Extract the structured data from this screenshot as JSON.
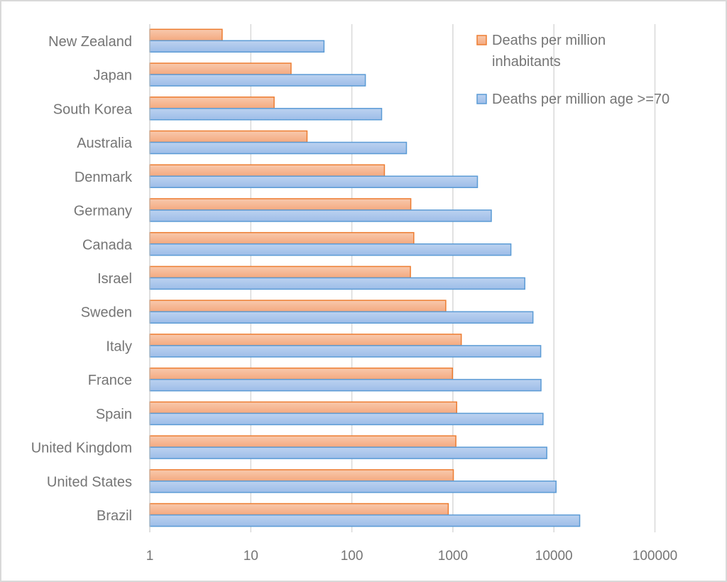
{
  "chart_data": {
    "type": "bar",
    "orientation": "horizontal",
    "title": "",
    "xlabel": "",
    "ylabel": "",
    "xscale": "log",
    "xlim": [
      1,
      100000
    ],
    "grid": true,
    "legend_position": "top-right",
    "x_ticks": [
      "1",
      "10",
      "100",
      "1000",
      "10000",
      "100000"
    ],
    "x_tick_values": [
      1,
      10,
      100,
      1000,
      10000,
      100000
    ],
    "categories": [
      "New Zealand",
      "Japan",
      "South Korea",
      "Australia",
      "Denmark",
      "Germany",
      "Canada",
      "Israel",
      "Sweden",
      "Italy",
      "France",
      "Spain",
      "United Kingdom",
      "United States",
      "Brazil"
    ],
    "series": [
      {
        "name": "Deaths per million inhabitants",
        "legend_lines": [
          "Deaths per million",
          "inhabitants"
        ],
        "color": "#f4b183",
        "edge_color": "#ed7d31",
        "values": [
          5.2,
          25,
          17,
          36,
          210,
          383,
          410,
          380,
          850,
          1210,
          990,
          1090,
          1070,
          1010,
          900
        ]
      },
      {
        "name": "Deaths per million age >=70",
        "legend_lines": [
          "Deaths per million age >=70"
        ],
        "color": "#a9c4eb",
        "edge_color": "#5b9bd5",
        "values": [
          53,
          136,
          197,
          347,
          1750,
          2400,
          3750,
          5150,
          6200,
          7400,
          7450,
          7800,
          8500,
          10500,
          18000
        ]
      }
    ]
  }
}
